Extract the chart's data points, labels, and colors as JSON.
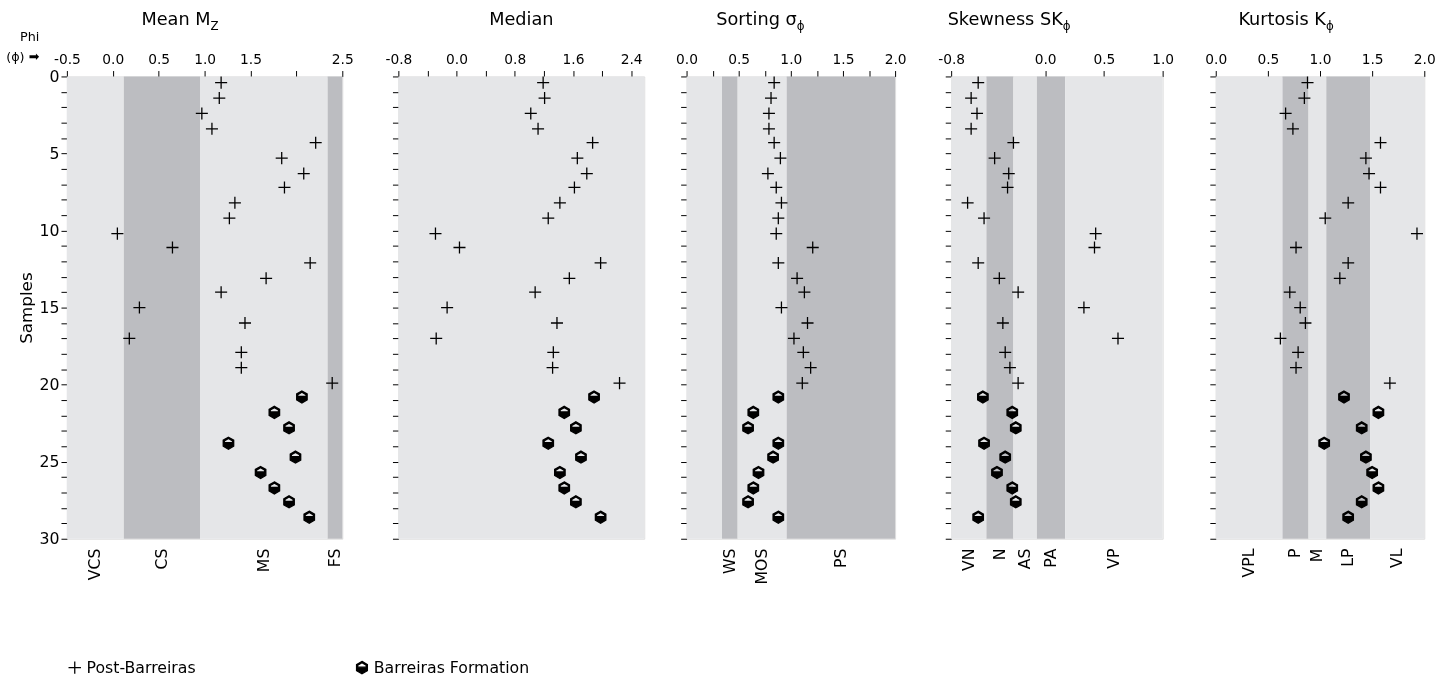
{
  "chart_data": [
    {
      "type": "scatter",
      "title": "Mean M$_{Z}$",
      "ylabel": "Samples",
      "annotations": [
        "Phi",
        "(ϕ) ➡"
      ],
      "legend": "bottom",
      "xlim": [
        -0.5,
        2.5
      ],
      "xticks": [
        -0.5,
        {
          "value": 0,
          "label": "0.0"
        },
        0.5,
        {
          "value": 1,
          "label": "1.0"
        },
        1.5,
        {
          "value": 2,
          "label": null
        },
        2.5
      ],
      "ylim": [
        30,
        0
      ],
      "yticks": [
        0,
        {
          "value": 1,
          "label": null
        },
        {
          "value": 2,
          "label": null
        },
        {
          "value": 3,
          "label": null
        },
        {
          "value": 4,
          "label": null
        },
        5,
        {
          "value": 6,
          "label": null
        },
        {
          "value": 7,
          "label": null
        },
        {
          "value": 8,
          "label": null
        },
        {
          "value": 9,
          "label": null
        },
        10,
        {
          "value": 11,
          "label": null
        },
        {
          "value": 12,
          "label": null
        },
        {
          "value": 13,
          "label": null
        },
        {
          "value": 14,
          "label": null
        },
        15,
        {
          "value": 16,
          "label": null
        },
        {
          "value": 17,
          "label": null
        },
        {
          "value": 18,
          "label": null
        },
        {
          "value": 19,
          "label": null
        },
        20,
        {
          "value": 21,
          "label": null
        },
        {
          "value": 22,
          "label": null
        },
        {
          "value": 23,
          "label": null
        },
        {
          "value": 24,
          "label": null
        },
        25,
        {
          "value": 26,
          "label": null
        },
        {
          "value": 27,
          "label": null
        },
        {
          "value": 28,
          "label": null
        },
        {
          "value": 29,
          "label": null
        },
        30
      ],
      "bands": [
        {
          "axis": "x",
          "from": -0.5,
          "to": 0.12,
          "label": "VCS",
          "color": "#e5e6e8"
        },
        {
          "axis": "x",
          "from": 0.12,
          "to": 0.95,
          "label": "CS",
          "color": "#bcbdc1"
        },
        {
          "axis": "x",
          "from": 0.95,
          "to": 2.34,
          "label": "MS",
          "color": "#e5e6e8"
        },
        {
          "axis": "x",
          "from": 2.34,
          "to": 2.5,
          "label": "FS",
          "color": "#bcbdc1"
        }
      ],
      "series": [
        {
          "name": "Post-Barreiras",
          "color": "#000000",
          "marker": "cross",
          "x": [
            1.18,
            1.16,
            0.97,
            1.08,
            2.21,
            1.84,
            2.08,
            1.87,
            1.33,
            1.27,
            0.05,
            0.65,
            2.15,
            1.67,
            1.18,
            0.29,
            1.44,
            0.18,
            1.4,
            1.4,
            2.39
          ],
          "values": [
            0.4,
            1.4,
            2.4,
            3.4,
            4.3,
            5.3,
            6.3,
            7.2,
            8.2,
            9.2,
            10.2,
            11.1,
            12.1,
            13.1,
            14.0,
            15.0,
            16.0,
            17.0,
            17.9,
            18.9,
            19.9
          ]
        },
        {
          "name": "Barreiras Formation",
          "color": "#000000",
          "x": [
            2.06,
            1.76,
            1.92,
            1.26,
            1.99,
            1.61,
            1.76,
            1.92,
            2.14
          ],
          "values": [
            20.8,
            21.8,
            22.8,
            23.8,
            24.7,
            25.7,
            26.7,
            27.6,
            28.6
          ]
        }
      ]
    },
    {
      "type": "scatter",
      "title": "Median",
      "tick_labels": "x",
      "xlim": [
        -0.8,
        2.58
      ],
      "xticks": [
        -0.8,
        {
          "value": -0.4,
          "label": null
        },
        {
          "value": 0,
          "label": "0.0"
        },
        {
          "value": 0.4,
          "label": null
        },
        0.8,
        {
          "value": 1.2,
          "label": null
        },
        1.6,
        {
          "value": 2.0,
          "label": null
        },
        2.4
      ],
      "ylim": [
        30,
        0
      ],
      "yticks": [
        0,
        {
          "value": 1,
          "label": null
        },
        {
          "value": 2,
          "label": null
        },
        {
          "value": 3,
          "label": null
        },
        {
          "value": 4,
          "label": null
        },
        5,
        {
          "value": 6,
          "label": null
        },
        {
          "value": 7,
          "label": null
        },
        {
          "value": 8,
          "label": null
        },
        {
          "value": 9,
          "label": null
        },
        10,
        {
          "value": 11,
          "label": null
        },
        {
          "value": 12,
          "label": null
        },
        {
          "value": 13,
          "label": null
        },
        {
          "value": 14,
          "label": null
        },
        15,
        {
          "value": 16,
          "label": null
        },
        {
          "value": 17,
          "label": null
        },
        {
          "value": 18,
          "label": null
        },
        {
          "value": 19,
          "label": null
        },
        20,
        {
          "value": 21,
          "label": null
        },
        {
          "value": 22,
          "label": null
        },
        {
          "value": 23,
          "label": null
        },
        {
          "value": 24,
          "label": null
        },
        25,
        {
          "value": 26,
          "label": null
        },
        {
          "value": 27,
          "label": null
        },
        {
          "value": 28,
          "label": null
        },
        {
          "value": 29,
          "label": null
        },
        30
      ],
      "bands": [
        {
          "axis": "x",
          "from": -0.8,
          "to": 2.58,
          "color": "#e5e6e8"
        }
      ],
      "series": [
        {
          "name": "Post-Barreiras",
          "color": "#000000",
          "marker": "cross",
          "x": [
            1.19,
            1.21,
            1.02,
            1.12,
            1.87,
            1.66,
            1.79,
            1.62,
            1.42,
            1.26,
            -0.29,
            0.04,
            1.98,
            1.55,
            1.08,
            -0.13,
            1.38,
            -0.28,
            1.33,
            1.32,
            2.24
          ],
          "values": [
            0.4,
            1.4,
            2.4,
            3.4,
            4.3,
            5.3,
            6.3,
            7.2,
            8.2,
            9.2,
            10.2,
            11.1,
            12.1,
            13.1,
            14.0,
            15.0,
            16.0,
            17.0,
            17.9,
            18.9,
            19.9
          ]
        },
        {
          "name": "Barreiras Formation",
          "color": "#000000",
          "x": [
            1.89,
            1.48,
            1.64,
            1.26,
            1.71,
            1.42,
            1.48,
            1.64,
            1.98
          ],
          "values": [
            20.8,
            21.8,
            22.8,
            23.8,
            24.7,
            25.7,
            26.7,
            27.6,
            28.6
          ]
        }
      ]
    },
    {
      "type": "scatter",
      "title": "Sorting σ$_{ϕ}$",
      "tick_labels": "x",
      "xlim": [
        0,
        2
      ],
      "xticks": [
        {
          "value": 0,
          "label": "0.0"
        },
        {
          "value": 0.25,
          "label": null
        },
        0.5,
        {
          "value": 0.75,
          "label": null
        },
        {
          "value": 1,
          "label": "1.0"
        },
        {
          "value": 1.25,
          "label": null
        },
        1.5,
        {
          "value": 1.75,
          "label": null
        },
        {
          "value": 2,
          "label": "2.0"
        }
      ],
      "ylim": [
        30,
        0
      ],
      "yticks": [
        0,
        {
          "value": 1,
          "label": null
        },
        {
          "value": 2,
          "label": null
        },
        {
          "value": 3,
          "label": null
        },
        {
          "value": 4,
          "label": null
        },
        5,
        {
          "value": 6,
          "label": null
        },
        {
          "value": 7,
          "label": null
        },
        {
          "value": 8,
          "label": null
        },
        {
          "value": 9,
          "label": null
        },
        10,
        {
          "value": 11,
          "label": null
        },
        {
          "value": 12,
          "label": null
        },
        {
          "value": 13,
          "label": null
        },
        {
          "value": 14,
          "label": null
        },
        15,
        {
          "value": 16,
          "label": null
        },
        {
          "value": 17,
          "label": null
        },
        {
          "value": 18,
          "label": null
        },
        {
          "value": 19,
          "label": null
        },
        20,
        {
          "value": 21,
          "label": null
        },
        {
          "value": 22,
          "label": null
        },
        {
          "value": 23,
          "label": null
        },
        {
          "value": 24,
          "label": null
        },
        25,
        {
          "value": 26,
          "label": null
        },
        {
          "value": 27,
          "label": null
        },
        {
          "value": 28,
          "label": null
        },
        {
          "value": 29,
          "label": null
        },
        30
      ],
      "bands": [
        {
          "axis": "x",
          "from": 0,
          "to": 0.34,
          "color": "#e5e6e8"
        },
        {
          "axis": "x",
          "from": 0.34,
          "to": 0.49,
          "label": "WS",
          "color": "#bcbdc1"
        },
        {
          "axis": "x",
          "from": 0.49,
          "to": 0.96,
          "label": "MOS",
          "color": "#e5e6e8"
        },
        {
          "axis": "x",
          "from": 0.96,
          "to": 2,
          "label": "PS",
          "color": "#bcbdc1"
        }
      ],
      "series": [
        {
          "name": "Post-Barreiras",
          "color": "#000000",
          "marker": "cross",
          "x": [
            0.84,
            0.81,
            0.79,
            0.79,
            0.84,
            0.9,
            0.78,
            0.86,
            0.91,
            0.88,
            0.86,
            1.21,
            0.88,
            1.06,
            1.13,
            0.91,
            1.16,
            1.03,
            1.12,
            1.19,
            1.11
          ],
          "values": [
            0.4,
            1.4,
            2.4,
            3.4,
            4.3,
            5.3,
            6.3,
            7.2,
            8.2,
            9.2,
            10.2,
            11.1,
            12.1,
            13.1,
            14.0,
            15.0,
            16.0,
            17.0,
            17.9,
            18.9,
            19.9
          ]
        },
        {
          "name": "Barreiras Formation",
          "color": "#000000",
          "x": [
            0.88,
            0.64,
            0.59,
            0.88,
            0.83,
            0.69,
            0.64,
            0.59,
            0.88
          ],
          "values": [
            20.8,
            21.8,
            22.8,
            23.8,
            24.7,
            25.7,
            26.7,
            27.6,
            28.6
          ]
        }
      ]
    },
    {
      "type": "scatter",
      "title": "Skewness SK$_{ϕ}$",
      "tick_labels": "x",
      "xlim": [
        -0.8,
        1
      ],
      "xticks": [
        -0.8,
        {
          "value": 0,
          "label": "0.0"
        },
        0.5,
        {
          "value": 1,
          "label": "1.0"
        }
      ],
      "ylim": [
        30,
        0
      ],
      "yticks": [
        0,
        {
          "value": 1,
          "label": null
        },
        {
          "value": 2,
          "label": null
        },
        {
          "value": 3,
          "label": null
        },
        {
          "value": 4,
          "label": null
        },
        5,
        {
          "value": 6,
          "label": null
        },
        {
          "value": 7,
          "label": null
        },
        {
          "value": 8,
          "label": null
        },
        {
          "value": 9,
          "label": null
        },
        10,
        {
          "value": 11,
          "label": null
        },
        {
          "value": 12,
          "label": null
        },
        {
          "value": 13,
          "label": null
        },
        {
          "value": 14,
          "label": null
        },
        15,
        {
          "value": 16,
          "label": null
        },
        {
          "value": 17,
          "label": null
        },
        {
          "value": 18,
          "label": null
        },
        {
          "value": 19,
          "label": null
        },
        20,
        {
          "value": 21,
          "label": null
        },
        {
          "value": 22,
          "label": null
        },
        {
          "value": 23,
          "label": null
        },
        {
          "value": 24,
          "label": null
        },
        25,
        {
          "value": 26,
          "label": null
        },
        {
          "value": 27,
          "label": null
        },
        {
          "value": 28,
          "label": null
        },
        {
          "value": 29,
          "label": null
        },
        30
      ],
      "bands": [
        {
          "axis": "x",
          "from": -0.8,
          "to": -0.5,
          "label": "VN",
          "color": "#e5e6e8"
        },
        {
          "axis": "x",
          "from": -0.5,
          "to": -0.27,
          "label": "N",
          "color": "#bcbdc1"
        },
        {
          "axis": "x",
          "from": -0.27,
          "to": -0.07,
          "label": "AS",
          "color": "#e5e6e8"
        },
        {
          "axis": "x",
          "from": -0.07,
          "to": 0.17,
          "label": "PA",
          "color": "#bcbdc1"
        },
        {
          "axis": "x",
          "from": 0.17,
          "to": 1,
          "label": "VP",
          "color": "#e5e6e8"
        }
      ],
      "series": [
        {
          "name": "Post-Barreiras",
          "color": "#000000",
          "marker": "cross",
          "x": [
            -0.57,
            -0.63,
            -0.58,
            -0.63,
            -0.27,
            -0.43,
            -0.31,
            -0.32,
            -0.66,
            -0.52,
            0.43,
            0.42,
            -0.57,
            -0.39,
            -0.23,
            0.33,
            -0.36,
            0.62,
            -0.34,
            -0.3,
            -0.23
          ],
          "values": [
            0.4,
            1.4,
            2.4,
            3.4,
            4.3,
            5.3,
            6.3,
            7.2,
            8.2,
            9.2,
            10.2,
            11.1,
            12.1,
            13.1,
            14.0,
            15.0,
            16.0,
            17.0,
            17.9,
            18.9,
            19.9
          ]
        },
        {
          "name": "Barreiras Formation",
          "color": "#000000",
          "x": [
            -0.53,
            -0.28,
            -0.25,
            -0.52,
            -0.34,
            -0.41,
            -0.28,
            -0.25,
            -0.57
          ],
          "values": [
            20.8,
            21.8,
            22.8,
            23.8,
            24.7,
            25.7,
            26.7,
            27.6,
            28.6
          ]
        }
      ]
    },
    {
      "type": "scatter",
      "title": "Kurtosis K$_{ϕ}$",
      "tick_labels": "x",
      "xlim": [
        0,
        2
      ],
      "xticks": [
        {
          "value": 0,
          "label": "0.0"
        },
        0.5,
        {
          "value": 1,
          "label": "1.0"
        },
        1.5,
        {
          "value": 2,
          "label": "2.0"
        }
      ],
      "ylim": [
        30,
        0
      ],
      "yticks": [
        0,
        {
          "value": 1,
          "label": null
        },
        {
          "value": 2,
          "label": null
        },
        {
          "value": 3,
          "label": null
        },
        {
          "value": 4,
          "label": null
        },
        5,
        {
          "value": 6,
          "label": null
        },
        {
          "value": 7,
          "label": null
        },
        {
          "value": 8,
          "label": null
        },
        {
          "value": 9,
          "label": null
        },
        10,
        {
          "value": 11,
          "label": null
        },
        {
          "value": 12,
          "label": null
        },
        {
          "value": 13,
          "label": null
        },
        {
          "value": 14,
          "label": null
        },
        15,
        {
          "value": 16,
          "label": null
        },
        {
          "value": 17,
          "label": null
        },
        {
          "value": 18,
          "label": null
        },
        {
          "value": 19,
          "label": null
        },
        20,
        {
          "value": 21,
          "label": null
        },
        {
          "value": 22,
          "label": null
        },
        {
          "value": 23,
          "label": null
        },
        {
          "value": 24,
          "label": null
        },
        25,
        {
          "value": 26,
          "label": null
        },
        {
          "value": 27,
          "label": null
        },
        {
          "value": 28,
          "label": null
        },
        {
          "value": 29,
          "label": null
        },
        30
      ],
      "bands": [
        {
          "axis": "x",
          "from": 0,
          "to": 0.64,
          "label": "VPL",
          "color": "#e5e6e8"
        },
        {
          "axis": "x",
          "from": 0.64,
          "to": 0.89,
          "label": "P",
          "color": "#bcbdc1"
        },
        {
          "axis": "x",
          "from": 0.89,
          "to": 1.06,
          "label": "M",
          "color": "#e5e6e8"
        },
        {
          "axis": "x",
          "from": 1.06,
          "to": 1.48,
          "label": "LP",
          "color": "#bcbdc1"
        },
        {
          "axis": "x",
          "from": 1.48,
          "to": 2,
          "label": "VL",
          "color": "#e5e6e8"
        }
      ],
      "series": [
        {
          "name": "Post-Barreiras",
          "color": "#000000",
          "marker": "cross",
          "x": [
            0.88,
            0.85,
            0.67,
            0.74,
            1.58,
            1.44,
            1.47,
            1.58,
            1.27,
            1.05,
            1.93,
            0.77,
            1.27,
            1.19,
            0.71,
            0.81,
            0.86,
            0.62,
            0.79,
            0.77,
            1.67
          ],
          "values": [
            0.4,
            1.4,
            2.4,
            3.4,
            4.3,
            5.3,
            6.3,
            7.2,
            8.2,
            9.2,
            10.2,
            11.1,
            12.1,
            13.1,
            14.0,
            15.0,
            16.0,
            17.0,
            17.9,
            18.9,
            19.9
          ]
        },
        {
          "name": "Barreiras Formation",
          "color": "#000000",
          "x": [
            1.23,
            1.56,
            1.4,
            1.04,
            1.44,
            1.5,
            1.56,
            1.4,
            1.27
          ],
          "values": [
            20.8,
            21.8,
            22.8,
            23.8,
            24.7,
            25.7,
            26.7,
            27.6,
            28.6
          ]
        }
      ]
    }
  ]
}
